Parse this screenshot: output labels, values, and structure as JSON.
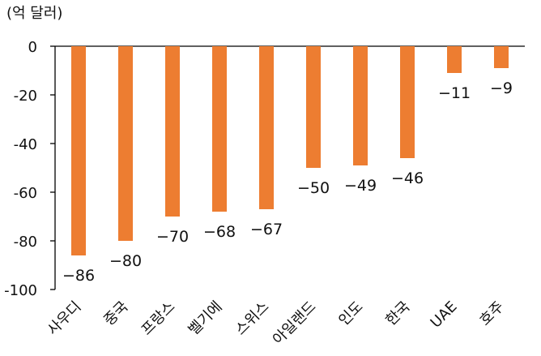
{
  "chart_data": {
    "type": "bar",
    "unit_label": "(억 달러)",
    "categories": [
      "사우디",
      "중국",
      "프랑스",
      "벨기에",
      "스위스",
      "아일랜드",
      "인도",
      "한국",
      "UAE",
      "호주"
    ],
    "values": [
      -86,
      -80,
      -70,
      -68,
      -67,
      -50,
      -49,
      -46,
      -11,
      -9
    ],
    "data_labels": [
      "−86",
      "−80",
      "−70",
      "−68",
      "−67",
      "−50",
      "−49",
      "−46",
      "−11",
      "−9"
    ],
    "yticks": [
      0,
      -20,
      -40,
      -60,
      -80,
      -100
    ],
    "ytick_labels": [
      "0",
      "-20",
      "-40",
      "-60",
      "-80",
      "-100"
    ],
    "ylim": [
      -100,
      0
    ],
    "grid": false,
    "legend": "none",
    "bar_color": "#ed7d31",
    "axis_color": "#000000"
  }
}
